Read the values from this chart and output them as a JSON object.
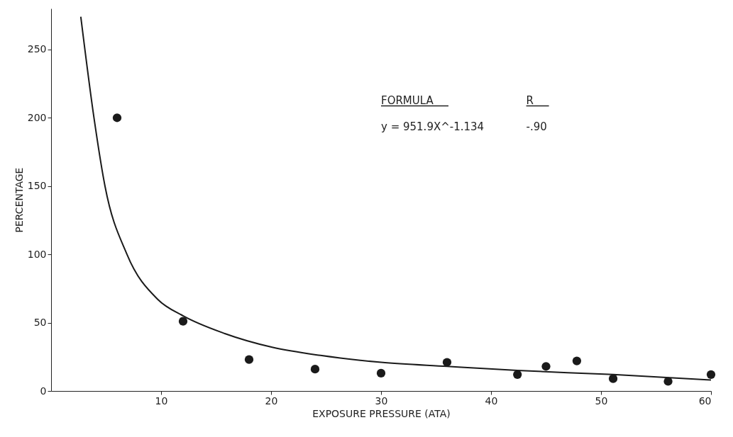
{
  "chart_data": {
    "type": "scatter",
    "xlabel": "EXPOSURE PRESSURE (ATA)",
    "ylabel": "PERCENTAGE",
    "xlim": [
      0,
      60
    ],
    "ylim": [
      0,
      280
    ],
    "xticks": [
      10,
      20,
      30,
      40,
      50,
      60
    ],
    "yticks": [
      0,
      50,
      100,
      150,
      200,
      250
    ],
    "grid": false,
    "marker": "circle",
    "annotations": [
      "FORMULA",
      "R",
      "y = 951.9X^-1.134",
      "-.90"
    ],
    "series": [
      {
        "color": "#1a1a1a",
        "x": [
          6,
          12,
          18,
          24,
          30,
          36,
          42.4,
          45,
          47.8,
          51.1,
          56.1,
          60
        ],
        "values": [
          200,
          51,
          23,
          16,
          13,
          21,
          12,
          18,
          22,
          9,
          7,
          12
        ]
      },
      {
        "type": "line",
        "color": "#1a1a1a",
        "marker": "none",
        "line_style": "solid",
        "x": [
          2.7,
          3.9,
          4.9,
          6.9,
          9.7,
          12,
          15.8,
          20.1,
          24.5,
          30,
          36,
          42.4,
          51.1,
          60
        ],
        "values": [
          274,
          200,
          150,
          100,
          67,
          55,
          42,
          32,
          26,
          21,
          18,
          15,
          12,
          8
        ]
      }
    ]
  }
}
